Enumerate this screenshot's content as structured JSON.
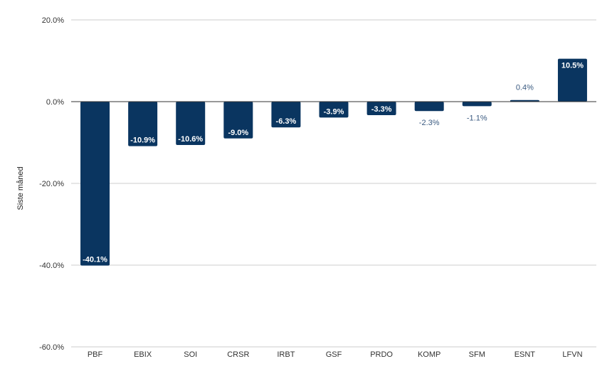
{
  "chart_data": {
    "type": "bar",
    "categories": [
      "PBF",
      "EBIX",
      "SOI",
      "CRSR",
      "IRBT",
      "GSF",
      "PRDO",
      "KOMP",
      "SFM",
      "ESNT",
      "LFVN"
    ],
    "values": [
      -40.1,
      -10.9,
      -10.6,
      -9.0,
      -6.3,
      -3.9,
      -3.3,
      -2.3,
      -1.1,
      0.4,
      10.5
    ],
    "value_labels": [
      "-40.1%",
      "-10.9%",
      "-10.6%",
      "-9.0%",
      "-6.3%",
      "-3.9%",
      "-3.3%",
      "-2.3%",
      "-1.1%",
      "0.4%",
      "10.5%"
    ],
    "title": "",
    "xlabel": "",
    "ylabel": "Siste måned",
    "ylim": [
      -60,
      20
    ],
    "yticks": [
      20,
      0,
      -20,
      -40,
      -60
    ],
    "ytick_labels": [
      "20.0%",
      "0.0%",
      "-20.0%",
      "-40.0%",
      "-60.0%"
    ],
    "grid": true,
    "bar_color": "#0a3560",
    "outside_label_color": "#3a5a80",
    "gridline_color": "#cccccc",
    "zero_line_color": "#333333"
  }
}
